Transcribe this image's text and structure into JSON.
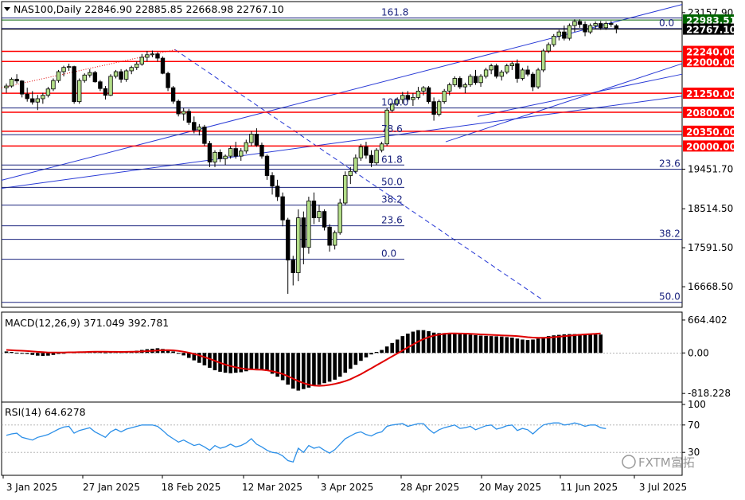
{
  "header": {
    "symbol_line": "NAS100,Daily  22846.90 22885.85 22668.98 22767.10",
    "macd_label": "MACD(12,26,9) 371.049 392.781",
    "rsi_label": "RSI(14) 64.6278",
    "watermark": "FXTM富拓"
  },
  "colors": {
    "candle_body": "#b3de88",
    "candle_outline": "#000000",
    "sr_line": "#ff0000",
    "fib_line": "#1a237e",
    "channel_line": "#2a3bd6",
    "macd_hist": "#000000",
    "macd_signal": "#e00000",
    "rsi_line": "#2b8fe8",
    "grid": "#c8c8c8"
  },
  "chart_data": [
    {
      "type": "candlestick",
      "name": "NAS100 Daily",
      "ylim": [
        16200,
        23400
      ],
      "price_axis_ticks": [
        "23157.90",
        "19451.70",
        "18514.50",
        "17591.50",
        "16668.50"
      ],
      "date_labels": [
        "3 Jan 2025",
        "27 Jan 2025",
        "18 Feb 2025",
        "12 Mar 2025",
        "3 Apr 2025",
        "28 Apr 2025",
        "20 May 2025",
        "11 Jun 2025",
        "3 Jul 2025"
      ],
      "support_resistance": [
        {
          "value": 22983.51,
          "label": "22983.51",
          "color": "#006400"
        },
        {
          "value": 22767.1,
          "label": "22767.10",
          "color": "#000000"
        },
        {
          "value": 22240,
          "label": "22240.00",
          "color": "#ff0000"
        },
        {
          "value": 22000,
          "label": "22000.00",
          "color": "#ff0000"
        },
        {
          "value": 21250,
          "label": "21250.00",
          "color": "#ff0000"
        },
        {
          "value": 20800,
          "label": "20800.00",
          "color": "#ff0000"
        },
        {
          "value": 20350,
          "label": "20350.00",
          "color": "#ff0000"
        },
        {
          "value": 20000,
          "label": "20000.00",
          "color": "#ff0000"
        }
      ],
      "fib_short": [
        {
          "label": "61.8",
          "value": 19550
        },
        {
          "label": "50.0",
          "value": 19020
        },
        {
          "label": "38.2",
          "value": 18600
        },
        {
          "label": "23.6",
          "value": 18110
        },
        {
          "label": "0.0",
          "value": 17320
        }
      ],
      "fib_long": [
        {
          "label": "161.8",
          "value": 23030
        },
        {
          "label": "0.0",
          "value": 22780
        },
        {
          "label": "100.0",
          "value": 20900
        },
        {
          "label": "78.6",
          "value": 20270
        },
        {
          "label": "23.6",
          "value": 19451.7
        },
        {
          "label": "38.2",
          "value": 17790
        },
        {
          "label": "50.0",
          "value": 16300
        }
      ],
      "candles": [
        [
          21380,
          21480,
          21260,
          21420
        ],
        [
          21420,
          21620,
          21380,
          21580
        ],
        [
          21580,
          21700,
          21480,
          21540
        ],
        [
          21540,
          21560,
          21150,
          21230
        ],
        [
          21230,
          21380,
          21050,
          21120
        ],
        [
          21120,
          21300,
          20980,
          21040
        ],
        [
          21040,
          21210,
          20850,
          21120
        ],
        [
          21120,
          21260,
          21000,
          21200
        ],
        [
          21200,
          21400,
          21150,
          21350
        ],
        [
          21350,
          21600,
          21300,
          21550
        ],
        [
          21550,
          21800,
          21500,
          21760
        ],
        [
          21760,
          21900,
          21650,
          21860
        ],
        [
          21860,
          21950,
          21780,
          21880
        ],
        [
          21880,
          21900,
          21000,
          21050
        ],
        [
          21050,
          21600,
          21000,
          21550
        ],
        [
          21550,
          21720,
          21500,
          21680
        ],
        [
          21680,
          21820,
          21620,
          21740
        ],
        [
          21740,
          21780,
          21500,
          21520
        ],
        [
          21520,
          21560,
          21300,
          21360
        ],
        [
          21360,
          21420,
          21100,
          21200
        ],
        [
          21200,
          21700,
          21180,
          21650
        ],
        [
          21650,
          21800,
          21600,
          21760
        ],
        [
          21760,
          21820,
          21500,
          21580
        ],
        [
          21580,
          21820,
          21520,
          21780
        ],
        [
          21780,
          21900,
          21700,
          21860
        ],
        [
          21860,
          22000,
          21800,
          21940
        ],
        [
          21940,
          22180,
          21900,
          22100
        ],
        [
          22100,
          22250,
          22000,
          22160
        ],
        [
          22160,
          22260,
          22100,
          22180
        ],
        [
          22180,
          22220,
          22000,
          22080
        ],
        [
          22080,
          22120,
          21700,
          21720
        ],
        [
          21720,
          21760,
          21300,
          21380
        ],
        [
          21380,
          21420,
          21000,
          21060
        ],
        [
          21060,
          21100,
          20700,
          20760
        ],
        [
          20760,
          20900,
          20600,
          20820
        ],
        [
          20820,
          20880,
          20500,
          20560
        ],
        [
          20560,
          20700,
          20300,
          20380
        ],
        [
          20380,
          20520,
          20250,
          20450
        ],
        [
          20450,
          20500,
          20000,
          20060
        ],
        [
          20060,
          20120,
          19500,
          19620
        ],
        [
          19620,
          19900,
          19500,
          19850
        ],
        [
          19850,
          19920,
          19620,
          19700
        ],
        [
          19700,
          19800,
          19550,
          19760
        ],
        [
          19760,
          20000,
          19700,
          19940
        ],
        [
          19940,
          20100,
          19700,
          19760
        ],
        [
          19760,
          19950,
          19650,
          19880
        ],
        [
          19880,
          20150,
          19820,
          20080
        ],
        [
          20080,
          20350,
          20000,
          20280
        ],
        [
          20280,
          20420,
          19980,
          20020
        ],
        [
          20020,
          20080,
          19700,
          19760
        ],
        [
          19760,
          19800,
          19200,
          19300
        ],
        [
          19300,
          19380,
          18850,
          19050
        ],
        [
          19050,
          19200,
          18700,
          18800
        ],
        [
          18800,
          18900,
          18100,
          18250
        ],
        [
          18250,
          18300,
          16500,
          17300
        ],
        [
          17300,
          17400,
          16700,
          17000
        ],
        [
          17000,
          18500,
          16800,
          18300
        ],
        [
          18300,
          18450,
          17200,
          17600
        ],
        [
          17600,
          18800,
          17450,
          18700
        ],
        [
          18700,
          18900,
          18150,
          18300
        ],
        [
          18300,
          18600,
          18200,
          18450
        ],
        [
          18450,
          18500,
          18000,
          18080
        ],
        [
          18080,
          18150,
          17500,
          17650
        ],
        [
          17650,
          18000,
          17550,
          17950
        ],
        [
          17950,
          18750,
          17900,
          18650
        ],
        [
          18650,
          19400,
          18600,
          19300
        ],
        [
          19300,
          19500,
          19100,
          19400
        ],
        [
          19400,
          19800,
          19350,
          19720
        ],
        [
          19720,
          20050,
          19650,
          19980
        ],
        [
          19980,
          20100,
          19700,
          19780
        ],
        [
          19780,
          19900,
          19500,
          19600
        ],
        [
          19600,
          19950,
          19550,
          19900
        ],
        [
          19900,
          20100,
          19850,
          20050
        ],
        [
          20050,
          20900,
          20000,
          20850
        ],
        [
          20850,
          21050,
          20800,
          21000
        ],
        [
          21000,
          21150,
          20950,
          21100
        ],
        [
          21100,
          21280,
          21000,
          21200
        ],
        [
          21200,
          21300,
          21050,
          21100
        ],
        [
          21100,
          21250,
          20950,
          21150
        ],
        [
          21150,
          21400,
          21100,
          21300
        ],
        [
          21300,
          21420,
          21200,
          21380
        ],
        [
          21380,
          21420,
          21000,
          21050
        ],
        [
          21050,
          21150,
          20600,
          20750
        ],
        [
          20750,
          21100,
          20700,
          21050
        ],
        [
          21050,
          21350,
          21000,
          21300
        ],
        [
          21300,
          21500,
          21200,
          21450
        ],
        [
          21450,
          21650,
          21400,
          21600
        ],
        [
          21600,
          21650,
          21350,
          21400
        ],
        [
          21400,
          21500,
          21250,
          21450
        ],
        [
          21450,
          21700,
          21400,
          21650
        ],
        [
          21650,
          21800,
          21450,
          21500
        ],
        [
          21500,
          21700,
          21400,
          21650
        ],
        [
          21650,
          21850,
          21600,
          21800
        ],
        [
          21800,
          21950,
          21700,
          21900
        ],
        [
          21900,
          21950,
          21600,
          21650
        ],
        [
          21650,
          21800,
          21550,
          21750
        ],
        [
          21750,
          21950,
          21700,
          21900
        ],
        [
          21900,
          22000,
          21800,
          21950
        ],
        [
          21950,
          22050,
          21500,
          21600
        ],
        [
          21600,
          21850,
          21550,
          21800
        ],
        [
          21800,
          21900,
          21650,
          21700
        ],
        [
          21700,
          21750,
          21300,
          21400
        ],
        [
          21400,
          21850,
          21350,
          21800
        ],
        [
          21800,
          22300,
          21750,
          22250
        ],
        [
          22250,
          22450,
          22200,
          22400
        ],
        [
          22400,
          22650,
          22350,
          22600
        ],
        [
          22600,
          22750,
          22500,
          22700
        ],
        [
          22700,
          22850,
          22500,
          22550
        ],
        [
          22550,
          22900,
          22500,
          22850
        ],
        [
          22850,
          23000,
          22700,
          22950
        ],
        [
          22950,
          23000,
          22800,
          22880
        ],
        [
          22880,
          22950,
          22600,
          22700
        ],
        [
          22700,
          22900,
          22650,
          22850
        ],
        [
          22850,
          22950,
          22780,
          22900
        ],
        [
          22900,
          22960,
          22750,
          22800
        ],
        [
          22800,
          22950,
          22750,
          22900
        ],
        [
          22900,
          22960,
          22820,
          22880
        ],
        [
          22846.9,
          22885.85,
          22668.98,
          22767.1
        ]
      ]
    },
    {
      "type": "macd",
      "name": "MACD(12,26,9)",
      "ylim": [
        -960,
        760
      ],
      "axis_ticks": [
        "664.402",
        "0.00",
        "-818.228"
      ],
      "macd": [
        30,
        20,
        5,
        -5,
        -20,
        -40,
        -55,
        -60,
        -55,
        -40,
        -20,
        0,
        15,
        10,
        20,
        30,
        35,
        30,
        20,
        10,
        15,
        20,
        15,
        20,
        30,
        45,
        60,
        75,
        85,
        95,
        80,
        60,
        30,
        -10,
        -50,
        -100,
        -150,
        -200,
        -250,
        -300,
        -350,
        -380,
        -400,
        -410,
        -400,
        -390,
        -370,
        -340,
        -320,
        -330,
        -360,
        -420,
        -480,
        -550,
        -640,
        -720,
        -760,
        -730,
        -700,
        -670,
        -640,
        -610,
        -580,
        -540,
        -480,
        -400,
        -320,
        -240,
        -160,
        -90,
        -30,
        20,
        60,
        130,
        200,
        270,
        340,
        390,
        430,
        460,
        460,
        440,
        410,
        400,
        400,
        400,
        395,
        390,
        380,
        370,
        360,
        350,
        345,
        340,
        335,
        330,
        320,
        310,
        290,
        270,
        260,
        270,
        290,
        320,
        340,
        355,
        365,
        375,
        380,
        380,
        380,
        378,
        375,
        372,
        371.049
      ],
      "signal": [
        60,
        55,
        50,
        45,
        38,
        30,
        22,
        15,
        10,
        8,
        8,
        10,
        12,
        13,
        15,
        18,
        22,
        24,
        24,
        23,
        22,
        22,
        21,
        22,
        23,
        26,
        30,
        36,
        42,
        50,
        55,
        56,
        52,
        42,
        25,
        5,
        -20,
        -50,
        -85,
        -120,
        -160,
        -200,
        -235,
        -265,
        -290,
        -310,
        -325,
        -332,
        -336,
        -340,
        -350,
        -370,
        -395,
        -425,
        -470,
        -520,
        -570,
        -610,
        -640,
        -660,
        -665,
        -660,
        -645,
        -625,
        -600,
        -570,
        -530,
        -480,
        -430,
        -370,
        -310,
        -250,
        -190,
        -130,
        -70,
        -10,
        50,
        110,
        170,
        230,
        280,
        320,
        350,
        370,
        385,
        395,
        395,
        392,
        390,
        385,
        380,
        375,
        370,
        365,
        360,
        355,
        350,
        345,
        340,
        330,
        318,
        310,
        305,
        305,
        310,
        318,
        328,
        338,
        348,
        358,
        366,
        374,
        380,
        386,
        392.781
      ]
    },
    {
      "type": "line",
      "name": "RSI(14)",
      "ylim": [
        0,
        100
      ],
      "axis_ticks": [
        "100",
        "70",
        "30",
        "0"
      ],
      "values": [
        55,
        57,
        58,
        52,
        50,
        48,
        52,
        54,
        56,
        60,
        64,
        67,
        68,
        58,
        62,
        64,
        66,
        60,
        56,
        52,
        60,
        64,
        60,
        64,
        66,
        68,
        70,
        70,
        70,
        68,
        62,
        55,
        50,
        45,
        48,
        44,
        40,
        42,
        38,
        33,
        40,
        36,
        38,
        42,
        38,
        40,
        44,
        50,
        42,
        38,
        33,
        30,
        29,
        25,
        18,
        16,
        36,
        30,
        40,
        36,
        38,
        33,
        29,
        34,
        42,
        50,
        54,
        58,
        60,
        56,
        54,
        58,
        60,
        68,
        70,
        71,
        72,
        68,
        70,
        72,
        72,
        64,
        58,
        63,
        66,
        68,
        70,
        65,
        66,
        68,
        63,
        66,
        69,
        70,
        64,
        66,
        69,
        70,
        62,
        65,
        63,
        57,
        64,
        70,
        72,
        73,
        73,
        70,
        71,
        73,
        71,
        68,
        70,
        70,
        66,
        64.6278
      ],
      "levels": [
        70,
        30
      ]
    }
  ]
}
